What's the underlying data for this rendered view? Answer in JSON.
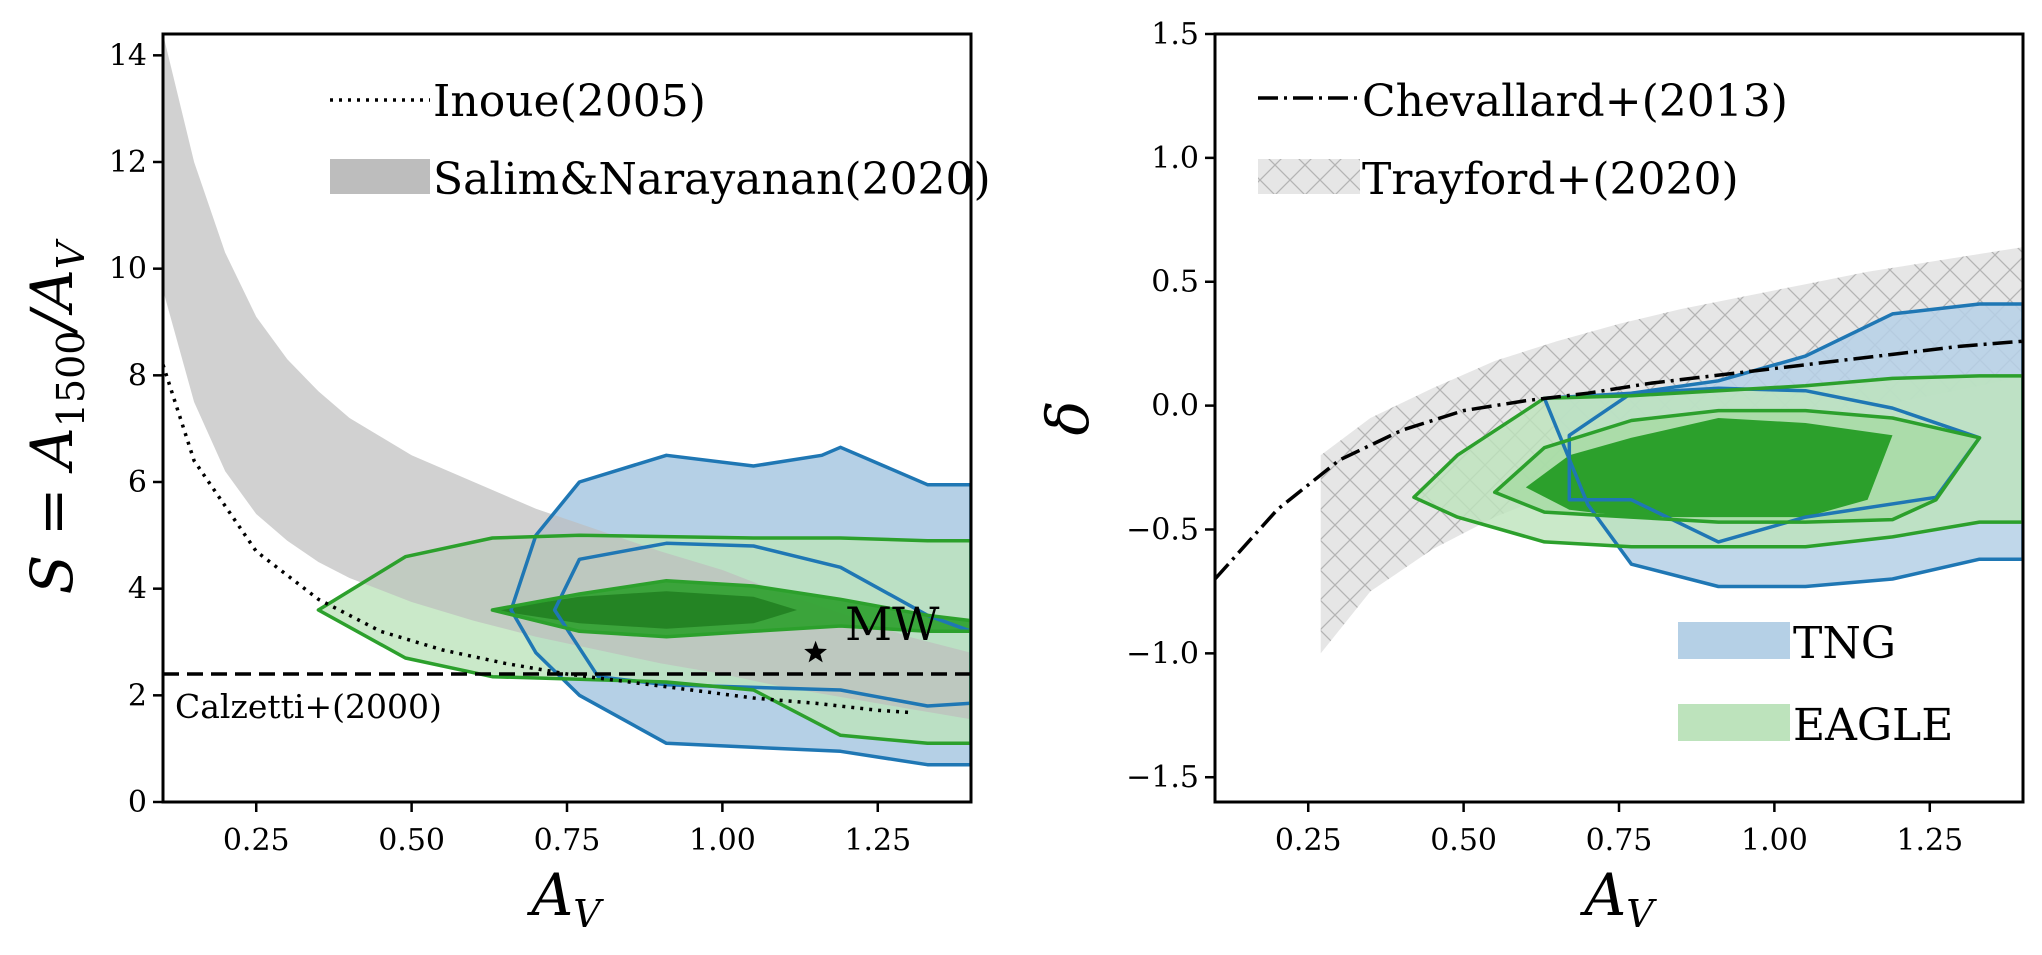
{
  "colors": {
    "tng_fill": "#b5d0e6",
    "tng_line": "#1f77b4",
    "eagle_fill": "#bde3bc",
    "eagle_line": "#2ca02c",
    "eagle_core": "#2ca02c",
    "salim_fill": "#bdbdbd",
    "trayford_fill": "#e6e6e6"
  },
  "chart_data": [
    {
      "type": "line",
      "panel": "left",
      "xlabel": "A_V",
      "ylabel": "S = A_1500/A_V",
      "xlim": [
        0.1,
        1.4
      ],
      "ylim": [
        0,
        14.4
      ],
      "xticks": [
        0.25,
        0.5,
        0.75,
        1.0,
        1.25
      ],
      "xtick_labels": [
        "0.25",
        "0.50",
        "0.75",
        "1.00",
        "1.25"
      ],
      "yticks": [
        0,
        2,
        4,
        6,
        8,
        10,
        12,
        14
      ],
      "ytick_labels": [
        "0",
        "2",
        "4",
        "6",
        "8",
        "10",
        "12",
        "14"
      ],
      "legend": [
        {
          "label": "Inoue(2005)",
          "style": "dotted"
        },
        {
          "label": "Salim&Narayanan(2020)",
          "style": "band"
        }
      ],
      "annotations": [
        {
          "text": "Calzetti+(2000)",
          "x": 0.12,
          "y": 1.75
        },
        {
          "text": "MW",
          "x": 1.15,
          "y": 2.8
        }
      ],
      "series": [
        {
          "name": "Inoue(2005)",
          "style": "dotted",
          "x": [
            0.1,
            0.15,
            0.25,
            0.35,
            0.45,
            0.55,
            0.65,
            0.75,
            0.85,
            0.95,
            1.05,
            1.15,
            1.25,
            1.3
          ],
          "y": [
            8.2,
            6.4,
            4.7,
            3.8,
            3.2,
            2.85,
            2.6,
            2.4,
            2.25,
            2.1,
            1.95,
            1.85,
            1.72,
            1.68
          ]
        },
        {
          "name": "Calzetti+(2000)",
          "style": "dashed",
          "x": [
            0.1,
            1.4
          ],
          "y": [
            2.4,
            2.4
          ]
        },
        {
          "name": "Salim&Narayanan(2020)",
          "style": "band",
          "x": [
            0.1,
            0.15,
            0.2,
            0.25,
            0.3,
            0.35,
            0.4,
            0.5,
            0.6,
            0.7,
            0.8,
            0.9,
            1.0,
            1.1,
            1.2,
            1.3,
            1.4
          ],
          "y_upper": [
            14.4,
            12.0,
            10.3,
            9.1,
            8.3,
            7.7,
            7.2,
            6.5,
            6.0,
            5.5,
            5.1,
            4.7,
            4.35,
            3.9,
            3.5,
            3.1,
            2.8
          ],
          "y_lower": [
            9.6,
            7.5,
            6.2,
            5.4,
            4.9,
            4.5,
            4.2,
            3.75,
            3.4,
            3.1,
            2.85,
            2.6,
            2.4,
            2.15,
            1.95,
            1.75,
            1.55
          ]
        },
        {
          "name": "TNG",
          "role": "contour-outer",
          "x": [
            0.7,
            0.77,
            0.91,
            1.05,
            1.16,
            1.19,
            1.33,
            1.4,
            1.4,
            1.33,
            1.19,
            0.91,
            0.77,
            0.7,
            0.66,
            0.7
          ],
          "y": [
            5.0,
            6.0,
            6.5,
            6.3,
            6.5,
            6.65,
            5.95,
            5.95,
            0.7,
            0.7,
            0.95,
            1.1,
            2.0,
            2.8,
            3.6,
            5.0
          ]
        },
        {
          "name": "TNG",
          "role": "contour-inner",
          "x": [
            0.77,
            0.91,
            1.05,
            1.19,
            1.33,
            1.4,
            1.4,
            1.33,
            1.19,
            0.91,
            0.8,
            0.73,
            0.77
          ],
          "y": [
            4.55,
            4.85,
            4.8,
            4.4,
            3.5,
            3.2,
            1.85,
            1.8,
            2.1,
            2.2,
            2.35,
            3.6,
            4.55
          ]
        },
        {
          "name": "EAGLE",
          "role": "contour-outer",
          "x": [
            0.35,
            0.49,
            0.63,
            0.77,
            1.05,
            1.19,
            1.33,
            1.4,
            1.4,
            1.33,
            1.19,
            1.05,
            0.91,
            0.77,
            0.63,
            0.49,
            0.35
          ],
          "y": [
            3.6,
            4.6,
            4.95,
            5.0,
            4.95,
            4.95,
            4.9,
            4.9,
            1.1,
            1.1,
            1.25,
            2.1,
            2.25,
            2.3,
            2.35,
            2.7,
            3.6
          ]
        },
        {
          "name": "EAGLE",
          "role": "contour-mid",
          "x": [
            0.63,
            0.77,
            0.91,
            1.05,
            1.19,
            1.33,
            1.4,
            1.4,
            1.33,
            1.19,
            1.05,
            0.91,
            0.77,
            0.63
          ],
          "y": [
            3.6,
            3.9,
            4.15,
            4.05,
            3.8,
            3.5,
            3.4,
            3.2,
            3.2,
            3.3,
            3.2,
            3.1,
            3.2,
            3.6
          ]
        },
        {
          "name": "EAGLE",
          "role": "contour-core",
          "x": [
            0.63,
            0.77,
            0.91,
            1.05,
            1.12,
            1.05,
            0.91,
            0.77,
            0.63
          ],
          "y": [
            3.6,
            3.85,
            3.95,
            3.85,
            3.6,
            3.35,
            3.25,
            3.35,
            3.6
          ]
        },
        {
          "name": "MW",
          "style": "star",
          "x": [
            1.15
          ],
          "y": [
            2.8
          ]
        }
      ]
    },
    {
      "type": "line",
      "panel": "right",
      "xlabel": "A_V",
      "ylabel": "δ",
      "xlim": [
        0.1,
        1.4
      ],
      "ylim": [
        -1.6,
        1.5
      ],
      "xticks": [
        0.25,
        0.5,
        0.75,
        1.0,
        1.25
      ],
      "xtick_labels": [
        "0.25",
        "0.50",
        "0.75",
        "1.00",
        "1.25"
      ],
      "yticks": [
        -1.5,
        -1.0,
        -0.5,
        0.0,
        0.5,
        1.0,
        1.5
      ],
      "ytick_labels": [
        "−1.5",
        "−1.0",
        "−0.5",
        "0.0",
        "0.5",
        "1.0",
        "1.5"
      ],
      "legend": [
        {
          "label": "Chevallard+(2013)",
          "style": "dashdot"
        },
        {
          "label": "Trayford+(2020)",
          "style": "hatched-band"
        },
        {
          "label": "TNG",
          "style": "fill-blue"
        },
        {
          "label": "EAGLE",
          "style": "fill-green"
        }
      ],
      "series": [
        {
          "name": "Chevallard+(2013)",
          "style": "dashdot",
          "x": [
            0.1,
            0.2,
            0.3,
            0.4,
            0.5,
            0.6,
            0.7,
            0.8,
            0.9,
            1.0,
            1.1,
            1.2,
            1.3,
            1.4
          ],
          "y": [
            -0.7,
            -0.42,
            -0.22,
            -0.1,
            -0.02,
            0.02,
            0.05,
            0.09,
            0.12,
            0.15,
            0.18,
            0.21,
            0.24,
            0.26
          ]
        },
        {
          "name": "Trayford+(2020)",
          "style": "hatched-band",
          "x": [
            0.27,
            0.35,
            0.45,
            0.55,
            0.65,
            0.75,
            0.85,
            0.95,
            1.05,
            1.15,
            1.25,
            1.35,
            1.4
          ],
          "y_upper": [
            -0.2,
            -0.05,
            0.07,
            0.18,
            0.26,
            0.33,
            0.39,
            0.44,
            0.49,
            0.54,
            0.58,
            0.62,
            0.64
          ],
          "y_lower": [
            -1.0,
            -0.75,
            -0.58,
            -0.45,
            -0.35,
            -0.27,
            -0.2,
            -0.13,
            -0.07,
            -0.01,
            0.04,
            0.09,
            0.12
          ]
        },
        {
          "name": "TNG",
          "role": "contour-outer",
          "x": [
            0.63,
            0.77,
            0.91,
            1.05,
            1.19,
            1.33,
            1.4,
            1.4,
            1.33,
            1.19,
            1.05,
            0.91,
            0.77,
            0.7,
            0.63
          ],
          "y": [
            0.03,
            0.05,
            0.1,
            0.2,
            0.37,
            0.41,
            0.41,
            -0.62,
            -0.62,
            -0.7,
            -0.73,
            -0.73,
            -0.64,
            -0.4,
            0.03
          ]
        },
        {
          "name": "TNG",
          "role": "contour-inner",
          "x": [
            0.67,
            0.77,
            0.91,
            1.05,
            1.19,
            1.33,
            1.26,
            1.05,
            0.91,
            0.77,
            0.67,
            0.67
          ],
          "y": [
            -0.12,
            0.05,
            0.07,
            0.06,
            -0.01,
            -0.13,
            -0.37,
            -0.45,
            -0.55,
            -0.38,
            -0.38,
            -0.12
          ]
        },
        {
          "name": "EAGLE",
          "role": "contour-outer",
          "x": [
            0.42,
            0.49,
            0.63,
            0.77,
            0.91,
            1.05,
            1.19,
            1.33,
            1.4,
            1.4,
            1.33,
            1.19,
            1.05,
            0.91,
            0.77,
            0.63,
            0.49,
            0.42
          ],
          "y": [
            -0.37,
            -0.2,
            0.03,
            0.04,
            0.06,
            0.08,
            0.11,
            0.12,
            0.12,
            -0.47,
            -0.47,
            -0.53,
            -0.57,
            -0.57,
            -0.57,
            -0.55,
            -0.45,
            -0.37
          ]
        },
        {
          "name": "EAGLE",
          "role": "contour-mid",
          "x": [
            0.55,
            0.63,
            0.77,
            0.91,
            1.05,
            1.19,
            1.33,
            1.26,
            1.19,
            1.05,
            0.91,
            0.77,
            0.63,
            0.55
          ],
          "y": [
            -0.35,
            -0.17,
            -0.06,
            -0.02,
            -0.02,
            -0.05,
            -0.13,
            -0.38,
            -0.46,
            -0.47,
            -0.47,
            -0.45,
            -0.43,
            -0.35
          ]
        },
        {
          "name": "EAGLE",
          "role": "contour-core",
          "x": [
            0.6,
            0.67,
            0.77,
            0.91,
            1.05,
            1.19,
            1.15,
            1.05,
            0.91,
            0.77,
            0.67,
            0.6
          ],
          "y": [
            -0.33,
            -0.2,
            -0.13,
            -0.05,
            -0.07,
            -0.12,
            -0.38,
            -0.45,
            -0.45,
            -0.45,
            -0.42,
            -0.33
          ]
        }
      ]
    }
  ]
}
